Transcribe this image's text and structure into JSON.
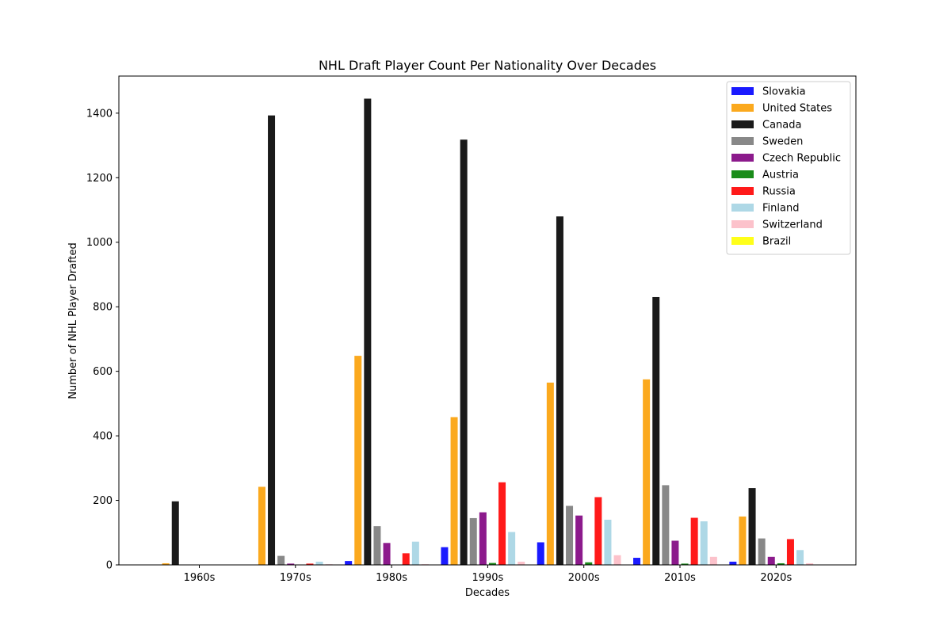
{
  "chart_data": {
    "type": "bar",
    "title": "NHL Draft Player Count Per Nationality Over Decades",
    "xlabel": "Decades",
    "ylabel": "Number of NHL Player Drafted",
    "categories": [
      "1960s",
      "1970s",
      "1980s",
      "1990s",
      "2000s",
      "2010s",
      "2020s"
    ],
    "ylim": [
      0,
      1515
    ],
    "yticks": [
      0,
      200,
      400,
      600,
      800,
      1000,
      1200,
      1400
    ],
    "grid": false,
    "legend_position": "top-right",
    "series": [
      {
        "name": "Slovakia",
        "color": "#1a1aff",
        "values": [
          0,
          0,
          12,
          55,
          70,
          22,
          10
        ]
      },
      {
        "name": "United States",
        "color": "#fba91e",
        "values": [
          5,
          242,
          648,
          458,
          565,
          575,
          150
        ]
      },
      {
        "name": "Canada",
        "color": "#1a1a1a",
        "values": [
          197,
          1393,
          1445,
          1318,
          1080,
          830,
          238
        ]
      },
      {
        "name": "Sweden",
        "color": "#888888",
        "values": [
          0,
          28,
          120,
          145,
          183,
          247,
          82
        ]
      },
      {
        "name": "Czech Republic",
        "color": "#8c1a8c",
        "values": [
          0,
          4,
          68,
          163,
          153,
          75,
          25
        ]
      },
      {
        "name": "Austria",
        "color": "#1a8c1a",
        "values": [
          0,
          1,
          1,
          6,
          8,
          4,
          5
        ]
      },
      {
        "name": "Russia",
        "color": "#ff1a1a",
        "values": [
          0,
          4,
          36,
          256,
          210,
          146,
          80
        ]
      },
      {
        "name": "Finland",
        "color": "#aed8e6",
        "values": [
          0,
          10,
          72,
          102,
          140,
          135,
          46
        ]
      },
      {
        "name": "Switzerland",
        "color": "#fcc2cb",
        "values": [
          0,
          2,
          2,
          10,
          30,
          25,
          5
        ]
      },
      {
        "name": "Brazil",
        "color": "#ffff1a",
        "values": [
          0,
          0,
          0,
          0,
          0,
          0,
          0
        ]
      }
    ]
  }
}
